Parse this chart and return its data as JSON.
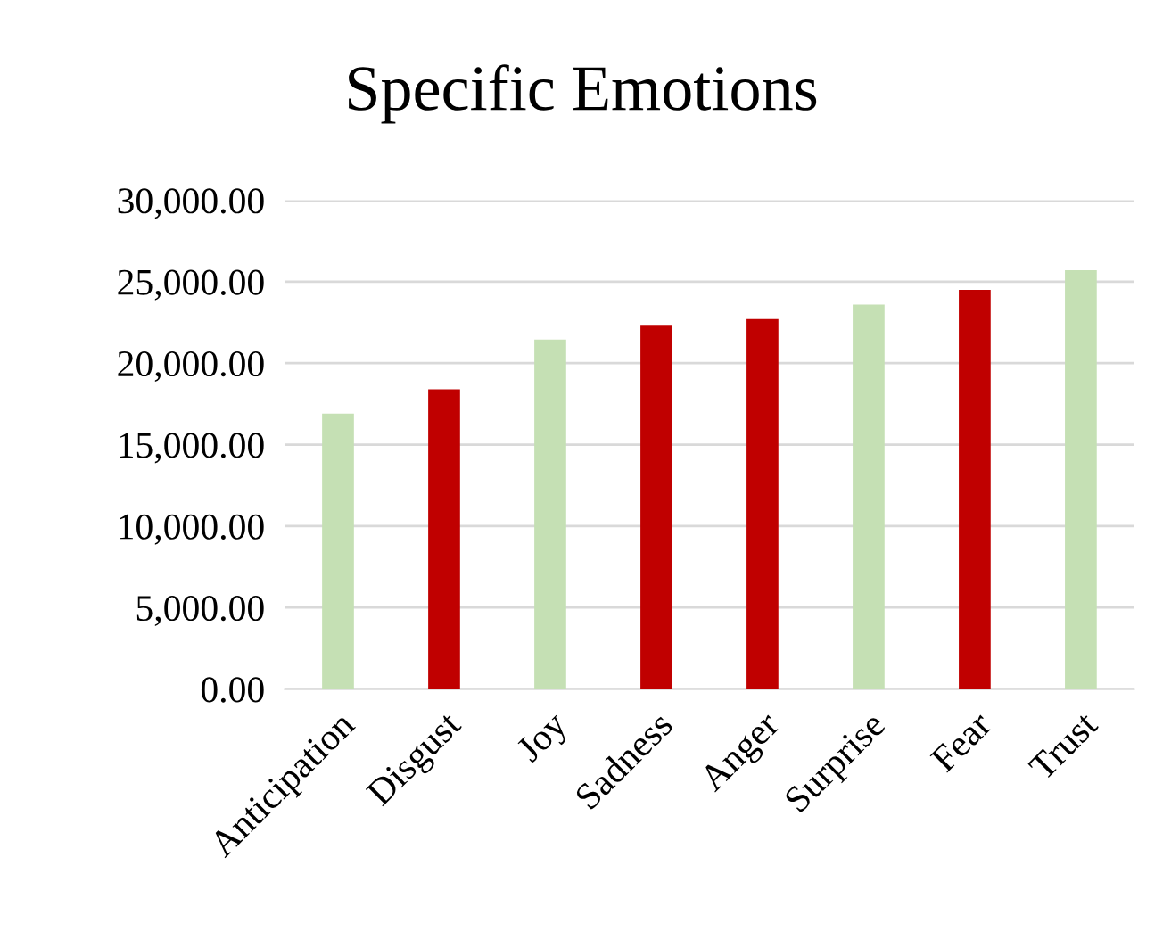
{
  "chart_data": {
    "type": "bar",
    "title": "Specific Emotions",
    "categories": [
      "Anticipation",
      "Disgust",
      "Joy",
      "Sadness",
      "Anger",
      "Surprise",
      "Fear",
      "Trust"
    ],
    "values": [
      16900,
      18400,
      21450,
      22350,
      22700,
      23600,
      24500,
      25700
    ],
    "colors": [
      "#c5e0b4",
      "#c00000",
      "#c5e0b4",
      "#c00000",
      "#c00000",
      "#c5e0b4",
      "#c00000",
      "#c5e0b4"
    ],
    "ylim": [
      0,
      30000
    ],
    "yticks": [
      {
        "value": 0,
        "label": "0.00"
      },
      {
        "value": 5000,
        "label": "5,000.00"
      },
      {
        "value": 10000,
        "label": "10,000.00"
      },
      {
        "value": 15000,
        "label": "15,000.00"
      },
      {
        "value": 20000,
        "label": "20,000.00"
      },
      {
        "value": 25000,
        "label": "25,000.00"
      },
      {
        "value": 30000,
        "label": "30,000.00"
      }
    ],
    "grid": "y",
    "legend": false
  }
}
